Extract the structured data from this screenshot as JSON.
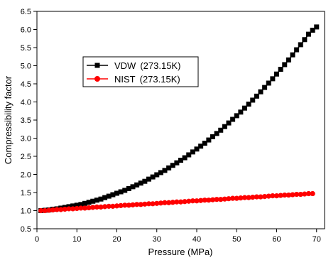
{
  "chart_data": {
    "type": "scatter",
    "title": "",
    "xlabel": "Pressure (MPa)",
    "ylabel": "Compressibility factor",
    "xlim": [
      0,
      72
    ],
    "ylim": [
      0.5,
      6.5
    ],
    "xticks": [
      "0",
      "10",
      "20",
      "30",
      "40",
      "50",
      "60",
      "70"
    ],
    "yticks": [
      "0.5",
      "1.0",
      "1.5",
      "2.0",
      "2.5",
      "3.0",
      "3.5",
      "4.0",
      "4.5",
      "5.0",
      "5.5",
      "6.0",
      "6.5"
    ],
    "grid": false,
    "legend_position": "top-left",
    "series": [
      {
        "name": "VDW",
        "legend_suffix": "(273.15K)",
        "marker": "square",
        "color": "#000000",
        "x": [
          1,
          2,
          3,
          4,
          5,
          6,
          7,
          8,
          9,
          10,
          11,
          12,
          13,
          14,
          15,
          16,
          17,
          18,
          19,
          20,
          21,
          22,
          23,
          24,
          25,
          26,
          27,
          28,
          29,
          30,
          31,
          32,
          33,
          34,
          35,
          36,
          37,
          38,
          39,
          40,
          41,
          42,
          43,
          44,
          45,
          46,
          47,
          48,
          49,
          50,
          51,
          52,
          53,
          54,
          55,
          56,
          57,
          58,
          59,
          60,
          61,
          62,
          63,
          64,
          65,
          66,
          67,
          68,
          69,
          70
        ],
        "y": [
          1.0,
          1.01,
          1.02,
          1.04,
          1.05,
          1.07,
          1.09,
          1.11,
          1.13,
          1.15,
          1.17,
          1.2,
          1.23,
          1.26,
          1.29,
          1.32,
          1.36,
          1.4,
          1.44,
          1.48,
          1.52,
          1.56,
          1.61,
          1.66,
          1.71,
          1.76,
          1.81,
          1.87,
          1.93,
          1.99,
          2.05,
          2.11,
          2.18,
          2.25,
          2.32,
          2.39,
          2.46,
          2.54,
          2.62,
          2.7,
          2.78,
          2.86,
          2.95,
          3.04,
          3.13,
          3.22,
          3.32,
          3.42,
          3.52,
          3.62,
          3.72,
          3.83,
          3.94,
          4.05,
          4.16,
          4.28,
          4.4,
          4.52,
          4.64,
          4.77,
          4.9,
          5.03,
          5.16,
          5.3,
          5.44,
          5.58,
          5.72,
          5.87,
          5.98,
          6.07
        ]
      },
      {
        "name": "NIST",
        "legend_suffix": "(273.15K)",
        "marker": "circle",
        "color": "#ff0000",
        "x": [
          1,
          2,
          3,
          4,
          5,
          6,
          7,
          8,
          9,
          10,
          11,
          12,
          13,
          14,
          15,
          16,
          17,
          18,
          19,
          20,
          21,
          22,
          23,
          24,
          25,
          26,
          27,
          28,
          29,
          30,
          31,
          32,
          33,
          34,
          35,
          36,
          37,
          38,
          39,
          40,
          41,
          42,
          43,
          44,
          45,
          46,
          47,
          48,
          49,
          50,
          51,
          52,
          53,
          54,
          55,
          56,
          57,
          58,
          59,
          60,
          61,
          62,
          63,
          64,
          65,
          66,
          67,
          68,
          69
        ],
        "y": [
          1.0,
          1.0,
          1.01,
          1.02,
          1.03,
          1.03,
          1.04,
          1.05,
          1.05,
          1.06,
          1.07,
          1.07,
          1.08,
          1.09,
          1.1,
          1.1,
          1.11,
          1.12,
          1.12,
          1.13,
          1.14,
          1.15,
          1.15,
          1.16,
          1.17,
          1.17,
          1.18,
          1.19,
          1.19,
          1.2,
          1.21,
          1.22,
          1.22,
          1.23,
          1.24,
          1.24,
          1.25,
          1.26,
          1.27,
          1.27,
          1.28,
          1.29,
          1.29,
          1.3,
          1.31,
          1.31,
          1.32,
          1.33,
          1.34,
          1.34,
          1.35,
          1.36,
          1.36,
          1.37,
          1.38,
          1.38,
          1.39,
          1.4,
          1.41,
          1.41,
          1.42,
          1.43,
          1.43,
          1.44,
          1.45,
          1.45,
          1.46,
          1.47,
          1.47
        ]
      }
    ]
  }
}
